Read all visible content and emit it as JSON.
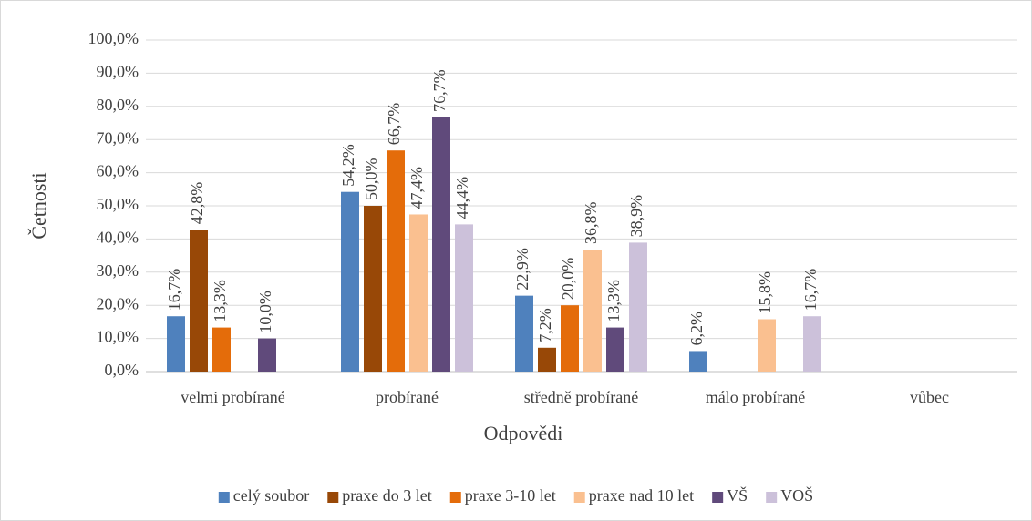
{
  "chart_data": {
    "type": "bar",
    "x_label": "Odpovědi",
    "y_label": "Četnosti",
    "categories": [
      "velmi probírané",
      "probírané",
      "středně probírané",
      "málo probírané",
      "vůbec"
    ],
    "series": [
      {
        "name": "celý soubor",
        "color": "#4f81bd",
        "values": [
          16.7,
          54.2,
          22.9,
          6.2,
          null
        ],
        "value_labels": [
          "16,7%",
          "54,2%",
          "22,9%",
          "6,2%",
          null
        ]
      },
      {
        "name": "praxe do 3 let",
        "color": "#984807",
        "values": [
          42.8,
          50.0,
          7.2,
          null,
          null
        ],
        "value_labels": [
          "42,8%",
          "50,0%",
          "7,2%",
          null,
          null
        ]
      },
      {
        "name": "praxe 3-10 let",
        "color": "#e46c0a",
        "values": [
          13.3,
          66.7,
          20.0,
          null,
          null
        ],
        "value_labels": [
          "13,3%",
          "66,7%",
          "20,0%",
          null,
          null
        ]
      },
      {
        "name": "praxe nad 10 let",
        "color": "#fac090",
        "values": [
          null,
          47.4,
          36.8,
          15.8,
          null
        ],
        "value_labels": [
          null,
          "47,4%",
          "36,8%",
          "15,8%",
          null
        ]
      },
      {
        "name": "VŠ",
        "color": "#604a7b",
        "values": [
          10.0,
          76.7,
          13.3,
          null,
          null
        ],
        "value_labels": [
          "10,0%",
          "76,7%",
          "13,3%",
          null,
          null
        ]
      },
      {
        "name": "VOŠ",
        "color": "#ccc1da",
        "values": [
          null,
          44.4,
          38.9,
          16.7,
          null
        ],
        "value_labels": [
          null,
          "44,4%",
          "38,9%",
          "16,7%",
          null
        ]
      }
    ],
    "ylim": [
      0,
      100
    ],
    "yticks": [
      {
        "value": 0,
        "label": "0,0%"
      },
      {
        "value": 10,
        "label": "10,0%"
      },
      {
        "value": 20,
        "label": "20,0%"
      },
      {
        "value": 30,
        "label": "30,0%"
      },
      {
        "value": 40,
        "label": "40,0%"
      },
      {
        "value": 50,
        "label": "50,0%"
      },
      {
        "value": 60,
        "label": "60,0%"
      },
      {
        "value": 70,
        "label": "70,0%"
      },
      {
        "value": 80,
        "label": "80,0%"
      },
      {
        "value": 90,
        "label": "90,0%"
      },
      {
        "value": 100,
        "label": "100,0%"
      }
    ],
    "grid": true,
    "legend": "bottom"
  }
}
